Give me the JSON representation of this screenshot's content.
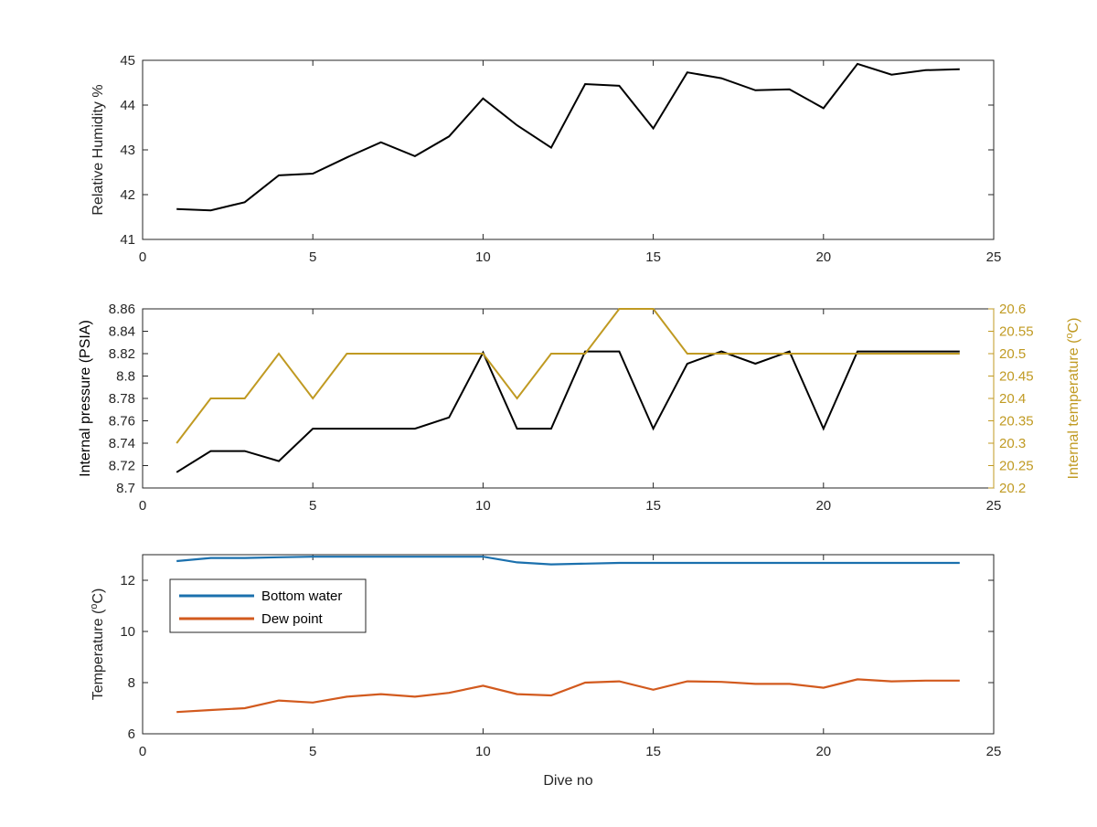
{
  "chart_data": [
    {
      "type": "line",
      "title": "",
      "xlabel": "",
      "ylabel": "Relative Humidity %",
      "xlim": [
        0,
        25
      ],
      "ylim": [
        41,
        45
      ],
      "xticks": [
        0,
        5,
        10,
        15,
        20,
        25
      ],
      "yticks": [
        41,
        42,
        43,
        44,
        45
      ],
      "grid": false,
      "x": [
        1,
        2,
        3,
        4,
        5,
        6,
        7,
        8,
        9,
        10,
        11,
        12,
        13,
        14,
        15,
        16,
        17,
        18,
        19,
        20,
        21,
        22,
        23,
        24
      ],
      "series": [
        {
          "color": "#000000",
          "axis": "left",
          "values": [
            41.68,
            41.65,
            41.83,
            42.43,
            42.47,
            42.83,
            43.17,
            42.86,
            43.3,
            44.15,
            43.55,
            43.05,
            44.47,
            44.43,
            43.48,
            44.73,
            44.6,
            44.33,
            44.35,
            43.93,
            44.92,
            44.68,
            44.78,
            44.8
          ]
        }
      ]
    },
    {
      "type": "line",
      "title": "",
      "xlabel": "",
      "ylabel": "Internal pressure (PSIA)",
      "ylabel_right": "Internal temperature (°C)",
      "xlim": [
        0,
        25
      ],
      "ylim": [
        8.7,
        8.86
      ],
      "ylim_right": [
        20.2,
        20.6
      ],
      "xticks": [
        0,
        5,
        10,
        15,
        20,
        25
      ],
      "yticks": [
        8.7,
        8.72,
        8.74,
        8.76,
        8.78,
        8.8,
        8.82,
        8.84,
        8.86
      ],
      "yticks_labels": [
        "8.7",
        "8.72",
        "8.74",
        "8.76",
        "8.78",
        "8.8",
        "8.82",
        "8.84",
        "8.86"
      ],
      "yticks_right": [
        20.2,
        20.25,
        20.3,
        20.35,
        20.4,
        20.45,
        20.5,
        20.55,
        20.6
      ],
      "yticks_right_labels": [
        "20.2",
        "20.25",
        "20.3",
        "20.35",
        "20.4",
        "20.45",
        "20.5",
        "20.55",
        "20.6"
      ],
      "grid": false,
      "x": [
        1,
        2,
        3,
        4,
        5,
        6,
        7,
        8,
        9,
        10,
        11,
        12,
        13,
        14,
        15,
        16,
        17,
        18,
        19,
        20,
        21,
        22,
        23,
        24
      ],
      "series": [
        {
          "color": "#000000",
          "axis": "left",
          "values": [
            8.714,
            8.733,
            8.733,
            8.724,
            8.753,
            8.753,
            8.753,
            8.753,
            8.763,
            8.821,
            8.753,
            8.753,
            8.822,
            8.822,
            8.753,
            8.811,
            8.822,
            8.811,
            8.822,
            8.753,
            8.822,
            8.822,
            8.822,
            8.822
          ]
        },
        {
          "color": "#c09a22",
          "axis": "right",
          "values": [
            20.3,
            20.4,
            20.4,
            20.5,
            20.4,
            20.5,
            20.5,
            20.5,
            20.5,
            20.5,
            20.4,
            20.5,
            20.5,
            20.6,
            20.6,
            20.5,
            20.5,
            20.5,
            20.5,
            20.5,
            20.5,
            20.5,
            20.5,
            20.5
          ]
        }
      ]
    },
    {
      "type": "line",
      "title": "",
      "xlabel": "Dive no",
      "ylabel": "Temperature (°C)",
      "xlim": [
        0,
        25
      ],
      "ylim": [
        6,
        13
      ],
      "xticks": [
        0,
        5,
        10,
        15,
        20,
        25
      ],
      "yticks": [
        6,
        8,
        10,
        12
      ],
      "grid": false,
      "legend_position": "top-left",
      "x": [
        1,
        2,
        3,
        4,
        5,
        6,
        7,
        8,
        9,
        10,
        11,
        12,
        13,
        14,
        15,
        16,
        17,
        18,
        19,
        20,
        21,
        22,
        23,
        24
      ],
      "series": [
        {
          "name": "Bottom water",
          "color": "#1b70ad",
          "axis": "left",
          "values": [
            12.75,
            12.87,
            12.87,
            12.9,
            12.92,
            12.92,
            12.92,
            12.92,
            12.92,
            12.92,
            12.7,
            12.62,
            12.65,
            12.68,
            12.68,
            12.68,
            12.68,
            12.68,
            12.68,
            12.68,
            12.68,
            12.68,
            12.68,
            12.68
          ]
        },
        {
          "name": "Dew point",
          "color": "#d25a1e",
          "axis": "left",
          "values": [
            6.85,
            6.93,
            7.0,
            7.3,
            7.22,
            7.45,
            7.55,
            7.45,
            7.6,
            7.88,
            7.55,
            7.5,
            8.0,
            8.05,
            7.72,
            8.05,
            8.03,
            7.95,
            7.95,
            7.8,
            8.13,
            8.05,
            8.08,
            8.08
          ]
        }
      ]
    }
  ]
}
